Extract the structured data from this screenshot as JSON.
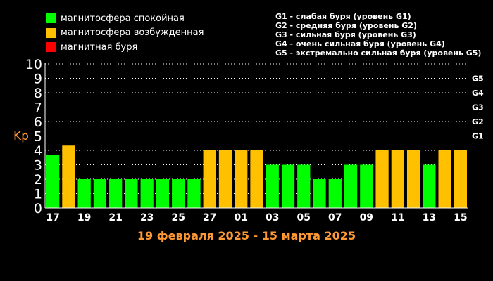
{
  "legend": [
    {
      "label": "магнитосфера спокойная",
      "color": "#00ff00"
    },
    {
      "label": "магнитосфера возбужденная",
      "color": "#ffc000"
    },
    {
      "label": "магнитная буря",
      "color": "#ff0000"
    }
  ],
  "storm_levels": [
    "G1 - слабая буря (уровень G1)",
    "G2 - средняя буря (уровень G2)",
    "G3 - сильная буря (уровень G3)",
    "G4 - очень сильная буря (уровень G4)",
    "G5 - экстремально сильная буря (уровень G5)"
  ],
  "chart_data": {
    "type": "bar",
    "ylabel": "Kp",
    "xlabel": "19 февраля 2025 - 15 марта 2025",
    "ylim": [
      0,
      10
    ],
    "yticks": [
      "0",
      "1",
      "2",
      "3",
      "4",
      "5",
      "6",
      "7",
      "8",
      "9",
      "10"
    ],
    "right_ticks": [
      {
        "label": "G1",
        "value": 5
      },
      {
        "label": "G2",
        "value": 6
      },
      {
        "label": "G3",
        "value": 7
      },
      {
        "label": "G4",
        "value": 8
      },
      {
        "label": "G5",
        "value": 9
      }
    ],
    "xtick_labels": [
      "17",
      "19",
      "21",
      "23",
      "25",
      "27",
      "01",
      "03",
      "05",
      "07",
      "09",
      "11",
      "13",
      "15"
    ],
    "values": [
      3.67,
      4.33,
      2,
      2,
      2,
      2,
      2,
      2,
      2,
      2,
      4,
      4,
      4,
      4,
      3,
      3,
      3,
      2,
      2,
      3,
      3,
      4,
      4,
      4,
      3,
      4,
      4
    ],
    "colors": [
      "#00ff00",
      "#ffc000",
      "#00ff00",
      "#00ff00",
      "#00ff00",
      "#00ff00",
      "#00ff00",
      "#00ff00",
      "#00ff00",
      "#00ff00",
      "#ffc000",
      "#ffc000",
      "#ffc000",
      "#ffc000",
      "#00ff00",
      "#00ff00",
      "#00ff00",
      "#00ff00",
      "#00ff00",
      "#00ff00",
      "#00ff00",
      "#ffc000",
      "#ffc000",
      "#ffc000",
      "#00ff00",
      "#ffc000",
      "#ffc000"
    ],
    "grid": true
  }
}
